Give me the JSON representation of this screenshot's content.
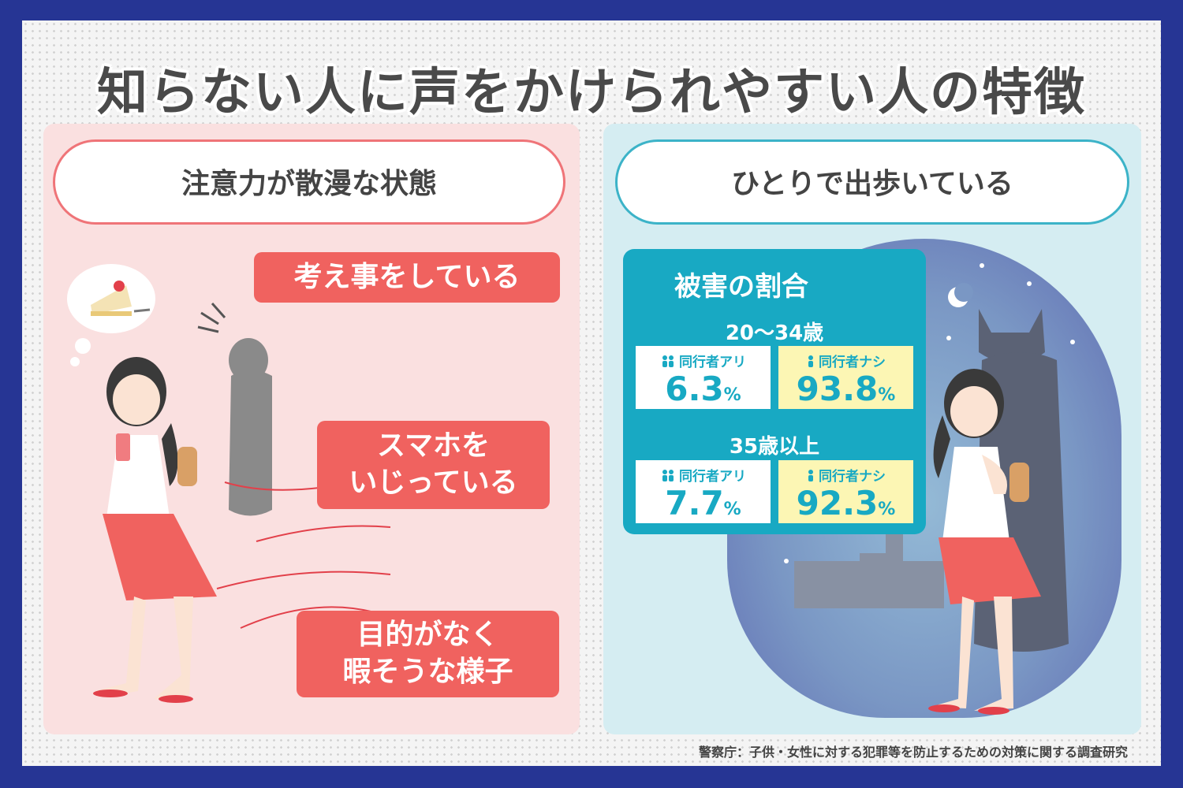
{
  "title": "知らない人に声をかけられやすい人の特徴",
  "left_panel": {
    "heading": "注意力が散漫な状態",
    "items": [
      {
        "lines": [
          "考え事をしている"
        ]
      },
      {
        "lines": [
          "スマホを",
          "いじっている"
        ]
      },
      {
        "lines": [
          "目的がなく",
          "暇そうな様子"
        ]
      }
    ]
  },
  "right_panel": {
    "heading": "ひとりで出歩いている",
    "stats": {
      "title": "被害の割合",
      "groups": [
        {
          "age": "20〜34歳",
          "with_label": "同行者アリ",
          "with_value": "6.3",
          "with_unit": "%",
          "without_label": "同行者ナシ",
          "without_value": "93.8",
          "without_unit": "%"
        },
        {
          "age": "35歳以上",
          "with_label": "同行者アリ",
          "with_value": "7.7",
          "with_unit": "%",
          "without_label": "同行者ナシ",
          "without_value": "92.3",
          "without_unit": "%"
        }
      ]
    }
  },
  "source": "警察庁：子供・女性に対する犯罪等を防止するための対策に関する調査研究",
  "colors": {
    "border": "#263594",
    "accent_red": "#f0625f",
    "accent_teal": "#18a9c3",
    "panel_pink": "#fae0e0",
    "panel_blue": "#d5edf2"
  }
}
